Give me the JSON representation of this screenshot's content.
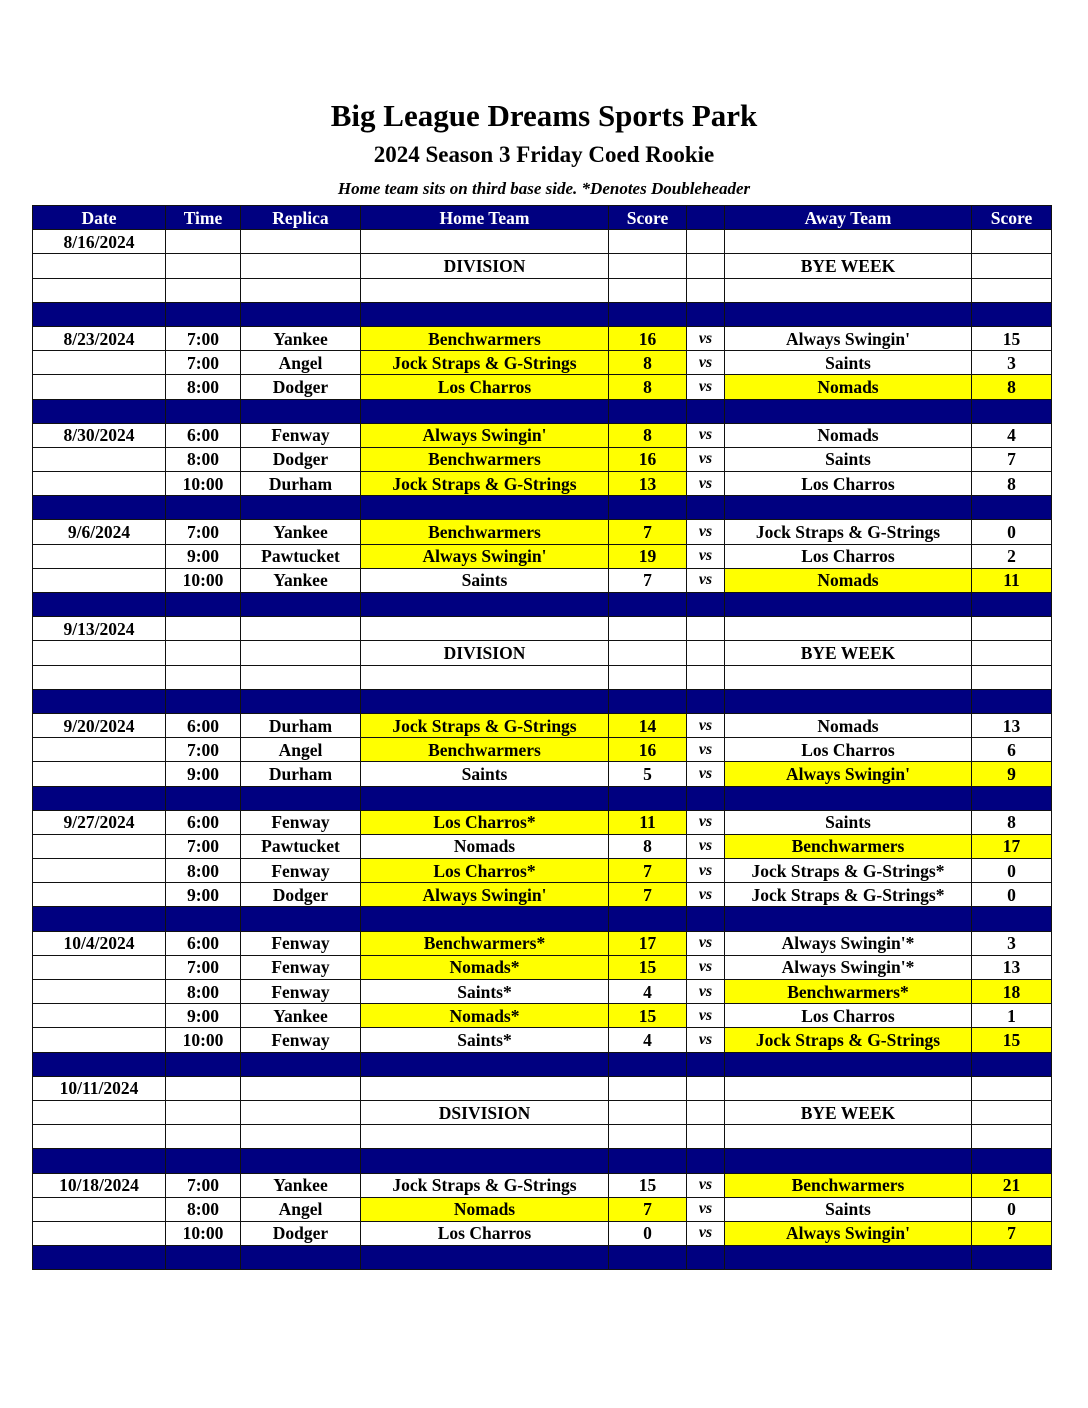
{
  "header": {
    "title": "Big League Dreams Sports Park",
    "subtitle": "2024 Season 3 Friday Coed Rookie",
    "note": "Home team sits on third base side.  *Denotes Doubleheader"
  },
  "colors": {
    "header_bg": "#000080",
    "winner_highlight": "#ffff00"
  },
  "columns": [
    "Date",
    "Time",
    "Replica",
    "Home Team",
    "Score",
    "",
    "Away Team",
    "Score"
  ],
  "rows": [
    {
      "type": "game",
      "date": "8/16/2024",
      "time": "",
      "replica": "",
      "home": "",
      "home_score": "",
      "vs": "",
      "away": "",
      "away_score": ""
    },
    {
      "type": "game",
      "date": "",
      "time": "",
      "replica": "",
      "home": "DIVISION",
      "home_score": "",
      "vs": "",
      "away": "BYE WEEK",
      "away_score": ""
    },
    {
      "type": "game",
      "date": "",
      "time": "",
      "replica": "",
      "home": "",
      "home_score": "",
      "vs": "",
      "away": "",
      "away_score": ""
    },
    {
      "type": "sep"
    },
    {
      "type": "game",
      "date": "8/23/2024",
      "time": "7:00",
      "replica": "Yankee",
      "home": "Benchwarmers",
      "home_score": "16",
      "vs": "vs",
      "away": "Always Swingin'",
      "away_score": "15",
      "highlight": "home"
    },
    {
      "type": "game",
      "date": "",
      "time": "7:00",
      "replica": "Angel",
      "home": "Jock Straps & G-Strings",
      "home_score": "8",
      "vs": "vs",
      "away": "Saints",
      "away_score": "3",
      "highlight": "home"
    },
    {
      "type": "game",
      "date": "",
      "time": "8:00",
      "replica": "Dodger",
      "home": "Los Charros",
      "home_score": "8",
      "vs": "vs",
      "away": "Nomads",
      "away_score": "8",
      "highlight": "both"
    },
    {
      "type": "sep"
    },
    {
      "type": "game",
      "date": "8/30/2024",
      "time": "6:00",
      "replica": "Fenway",
      "home": "Always Swingin'",
      "home_score": "8",
      "vs": "vs",
      "away": "Nomads",
      "away_score": "4",
      "highlight": "home"
    },
    {
      "type": "game",
      "date": "",
      "time": "8:00",
      "replica": "Dodger",
      "home": "Benchwarmers",
      "home_score": "16",
      "vs": "vs",
      "away": "Saints",
      "away_score": "7",
      "highlight": "home"
    },
    {
      "type": "game",
      "date": "",
      "time": "10:00",
      "replica": "Durham",
      "home": "Jock Straps & G-Strings",
      "home_score": "13",
      "vs": "vs",
      "away": "Los Charros",
      "away_score": "8",
      "highlight": "home"
    },
    {
      "type": "sep"
    },
    {
      "type": "game",
      "date": "9/6/2024",
      "time": "7:00",
      "replica": "Yankee",
      "home": "Benchwarmers",
      "home_score": "7",
      "vs": "vs",
      "away": "Jock Straps & G-Strings",
      "away_score": "0",
      "highlight": "home"
    },
    {
      "type": "game",
      "date": "",
      "time": "9:00",
      "replica": "Pawtucket",
      "home": "Always Swingin'",
      "home_score": "19",
      "vs": "vs",
      "away": "Los Charros",
      "away_score": "2",
      "highlight": "home"
    },
    {
      "type": "game",
      "date": "",
      "time": "10:00",
      "replica": "Yankee",
      "home": "Saints",
      "home_score": "7",
      "vs": "vs",
      "away": "Nomads",
      "away_score": "11",
      "highlight": "away"
    },
    {
      "type": "sep"
    },
    {
      "type": "game",
      "date": "9/13/2024",
      "time": "",
      "replica": "",
      "home": "",
      "home_score": "",
      "vs": "",
      "away": "",
      "away_score": ""
    },
    {
      "type": "game",
      "date": "",
      "time": "",
      "replica": "",
      "home": "DIVISION",
      "home_score": "",
      "vs": "",
      "away": "BYE WEEK",
      "away_score": ""
    },
    {
      "type": "game",
      "date": "",
      "time": "",
      "replica": "",
      "home": "",
      "home_score": "",
      "vs": "",
      "away": "",
      "away_score": ""
    },
    {
      "type": "sep"
    },
    {
      "type": "game",
      "date": "9/20/2024",
      "time": "6:00",
      "replica": "Durham",
      "home": "Jock Straps & G-Strings",
      "home_score": "14",
      "vs": "vs",
      "away": "Nomads",
      "away_score": "13",
      "highlight": "home"
    },
    {
      "type": "game",
      "date": "",
      "time": "7:00",
      "replica": "Angel",
      "home": "Benchwarmers",
      "home_score": "16",
      "vs": "vs",
      "away": "Los Charros",
      "away_score": "6",
      "highlight": "home"
    },
    {
      "type": "game",
      "date": "",
      "time": "9:00",
      "replica": "Durham",
      "home": "Saints",
      "home_score": "5",
      "vs": "vs",
      "away": "Always Swingin'",
      "away_score": "9",
      "highlight": "away"
    },
    {
      "type": "sep"
    },
    {
      "type": "game",
      "date": "9/27/2024",
      "time": "6:00",
      "replica": "Fenway",
      "home": "Los Charros*",
      "home_score": "11",
      "vs": "vs",
      "away": "Saints",
      "away_score": "8",
      "highlight": "home"
    },
    {
      "type": "game",
      "date": "",
      "time": "7:00",
      "replica": "Pawtucket",
      "home": "Nomads",
      "home_score": "8",
      "vs": "vs",
      "away": "Benchwarmers",
      "away_score": "17",
      "highlight": "away"
    },
    {
      "type": "game",
      "date": "",
      "time": "8:00",
      "replica": "Fenway",
      "home": "Los Charros*",
      "home_score": "7",
      "vs": "vs",
      "away": "Jock Straps & G-Strings*",
      "away_score": "0",
      "highlight": "home"
    },
    {
      "type": "game",
      "date": "",
      "time": "9:00",
      "replica": "Dodger",
      "home": "Always Swingin'",
      "home_score": "7",
      "vs": "vs",
      "away": "Jock Straps & G-Strings*",
      "away_score": "0",
      "highlight": "home"
    },
    {
      "type": "sep"
    },
    {
      "type": "game",
      "date": "10/4/2024",
      "time": "6:00",
      "replica": "Fenway",
      "home": "Benchwarmers*",
      "home_score": "17",
      "vs": "vs",
      "away": "Always Swingin'*",
      "away_score": "3",
      "highlight": "home"
    },
    {
      "type": "game",
      "date": "",
      "time": "7:00",
      "replica": "Fenway",
      "home": "Nomads*",
      "home_score": "15",
      "vs": "vs",
      "away": "Always Swingin'*",
      "away_score": "13",
      "highlight": "home"
    },
    {
      "type": "game",
      "date": "",
      "time": "8:00",
      "replica": "Fenway",
      "home": "Saints*",
      "home_score": "4",
      "vs": "vs",
      "away": "Benchwarmers*",
      "away_score": "18",
      "highlight": "away"
    },
    {
      "type": "game",
      "date": "",
      "time": "9:00",
      "replica": "Yankee",
      "home": "Nomads*",
      "home_score": "15",
      "vs": "vs",
      "away": "Los Charros",
      "away_score": "1",
      "highlight": "home"
    },
    {
      "type": "game",
      "date": "",
      "time": "10:00",
      "replica": "Fenway",
      "home": "Saints*",
      "home_score": "4",
      "vs": "vs",
      "away": "Jock Straps & G-Strings",
      "away_score": "15",
      "highlight": "away"
    },
    {
      "type": "sep"
    },
    {
      "type": "game",
      "date": "10/11/2024",
      "time": "",
      "replica": "",
      "home": "",
      "home_score": "",
      "vs": "",
      "away": "",
      "away_score": ""
    },
    {
      "type": "game",
      "date": "",
      "time": "",
      "replica": "",
      "home": "DSIVISION",
      "home_score": "",
      "vs": "",
      "away": "BYE WEEK",
      "away_score": ""
    },
    {
      "type": "game",
      "date": "",
      "time": "",
      "replica": "",
      "home": "",
      "home_score": "",
      "vs": "",
      "away": "",
      "away_score": ""
    },
    {
      "type": "sep"
    },
    {
      "type": "game",
      "date": "10/18/2024",
      "time": "7:00",
      "replica": "Yankee",
      "home": "Jock Straps & G-Strings",
      "home_score": "15",
      "vs": "vs",
      "away": "Benchwarmers",
      "away_score": "21",
      "highlight": "away"
    },
    {
      "type": "game",
      "date": "",
      "time": "8:00",
      "replica": "Angel",
      "home": "Nomads",
      "home_score": "7",
      "vs": "vs",
      "away": "Saints",
      "away_score": "0",
      "highlight": "home"
    },
    {
      "type": "game",
      "date": "",
      "time": "10:00",
      "replica": "Dodger",
      "home": "Los Charros",
      "home_score": "0",
      "vs": "vs",
      "away": "Always Swingin'",
      "away_score": "7",
      "highlight": "away"
    },
    {
      "type": "sep"
    }
  ]
}
